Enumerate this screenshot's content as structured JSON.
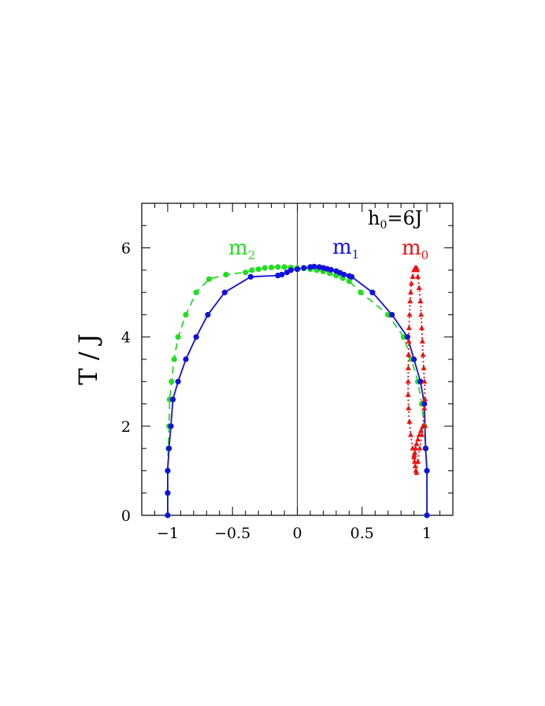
{
  "chart_data": {
    "type": "scatter",
    "xlim": [
      -1.2,
      1.2
    ],
    "ylim": [
      0,
      7
    ],
    "xticks": [
      -1,
      -0.5,
      0,
      0.5,
      1
    ],
    "xtick_labels": [
      "−1",
      "−0.5",
      "0",
      "0.5",
      "1"
    ],
    "yticks": [
      0,
      2,
      4,
      6
    ],
    "ytick_labels": [
      "0",
      "2",
      "4",
      "6"
    ],
    "ylabel": "T / J",
    "xlabel": "",
    "annotation": {
      "base": "h",
      "sub": "0",
      "tail": "=6J"
    },
    "legend_placement": "inline",
    "grid": false,
    "series": [
      {
        "name": "m",
        "name_sub": "2",
        "color": "#22dd22",
        "line_style": "dashed",
        "marker": "circle",
        "x": [
          -1.0,
          -1.0,
          -1.0,
          -0.995,
          -0.99,
          -0.985,
          -0.97,
          -0.95,
          -0.92,
          -0.86,
          -0.78,
          -0.68,
          -0.55,
          -0.4,
          -0.35,
          -0.3,
          -0.25,
          -0.2,
          -0.15,
          -0.1,
          -0.05,
          0.0,
          0.05,
          0.1,
          0.15,
          0.2,
          0.25,
          0.3,
          0.35,
          0.4,
          0.49,
          0.7,
          0.82,
          0.88,
          0.93,
          0.96,
          0.98,
          0.99,
          1.0,
          1.0
        ],
        "y": [
          0.0,
          0.5,
          1.0,
          1.5,
          2.0,
          2.6,
          3.0,
          3.5,
          4.0,
          4.5,
          5.0,
          5.3,
          5.4,
          5.45,
          5.5,
          5.52,
          5.55,
          5.56,
          5.57,
          5.57,
          5.56,
          5.55,
          5.54,
          5.52,
          5.5,
          5.47,
          5.43,
          5.38,
          5.32,
          5.25,
          5.0,
          4.5,
          4.0,
          3.5,
          3.0,
          2.5,
          2.0,
          1.5,
          1.0,
          0.0
        ]
      },
      {
        "name": "m",
        "name_sub": "1",
        "color": "#1111dd",
        "line_style": "solid",
        "marker": "circle",
        "x": [
          -1.0,
          -1.0,
          -1.0,
          -0.99,
          -0.975,
          -0.96,
          -0.92,
          -0.86,
          -0.78,
          -0.69,
          -0.56,
          -0.36,
          -0.15,
          -0.12,
          -0.08,
          -0.05,
          0.0,
          0.05,
          0.1,
          0.13,
          0.17,
          0.2,
          0.23,
          0.26,
          0.3,
          0.33,
          0.36,
          0.4,
          0.42,
          0.58,
          0.73,
          0.85,
          0.9,
          0.95,
          0.98,
          0.99,
          1.0,
          1.0
        ],
        "y": [
          0.0,
          0.5,
          1.0,
          1.5,
          2.0,
          2.6,
          3.0,
          3.5,
          4.0,
          4.5,
          5.0,
          5.35,
          5.38,
          5.4,
          5.45,
          5.5,
          5.52,
          5.55,
          5.57,
          5.58,
          5.57,
          5.55,
          5.53,
          5.51,
          5.48,
          5.44,
          5.4,
          5.37,
          5.35,
          5.0,
          4.5,
          4.0,
          3.5,
          3.0,
          2.5,
          1.5,
          1.0,
          0.0
        ]
      },
      {
        "name": "m",
        "name_sub": "0",
        "color": "#ee1111",
        "line_style": "dotted",
        "marker": "triangle",
        "x": [
          0.985,
          0.97,
          0.955,
          0.94,
          0.93,
          0.92,
          0.912,
          0.906,
          0.902,
          0.9,
          0.905,
          0.91,
          0.915,
          0.92,
          0.93,
          0.945,
          0.96,
          0.97,
          0.98,
          0.985,
          0.98,
          0.975,
          0.97,
          0.965,
          0.96,
          0.955,
          0.95,
          0.94,
          0.93,
          0.925,
          0.92,
          0.91,
          0.9,
          0.89,
          0.88,
          0.875,
          0.87,
          0.866,
          0.862,
          0.86,
          0.858,
          0.856,
          0.855,
          0.855,
          0.858,
          0.865,
          0.875,
          0.89
        ],
        "y": [
          2.0,
          2.0,
          1.9,
          1.8,
          1.7,
          1.6,
          1.5,
          1.4,
          1.35,
          1.3,
          1.2,
          1.1,
          1.0,
          0.95,
          1.2,
          1.5,
          1.8,
          2.0,
          2.4,
          2.6,
          3.0,
          3.3,
          3.6,
          3.9,
          4.2,
          4.5,
          4.8,
          5.1,
          5.35,
          5.5,
          5.55,
          5.55,
          5.5,
          5.35,
          5.2,
          5.0,
          4.8,
          4.5,
          4.2,
          3.9,
          3.6,
          3.3,
          3.0,
          2.7,
          2.4,
          2.1,
          1.8,
          1.5
        ]
      }
    ]
  }
}
